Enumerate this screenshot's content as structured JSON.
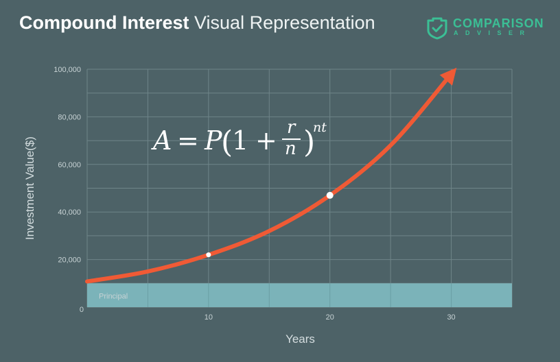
{
  "header": {
    "title_bold": "Compound Interest",
    "title_light": "Visual Representation"
  },
  "logo": {
    "name": "COMPARISON",
    "sub": "ADVISER",
    "icon": "shield-check-icon",
    "color": "#3bbf95"
  },
  "formula": {
    "lhs": "A",
    "eq": "=",
    "p": "P",
    "one": "1",
    "plus": "+",
    "r": "r",
    "n": "n",
    "exp": "nt"
  },
  "chart_data": {
    "type": "line",
    "title": "Compound Interest Visual Representation",
    "xlabel": "Years",
    "ylabel": "Investment Value($)",
    "xlim": [
      0,
      35
    ],
    "ylim": [
      0,
      100000
    ],
    "x_ticks": [
      10,
      20,
      30
    ],
    "x_tick_labels": [
      "10",
      "20",
      "30"
    ],
    "y_ticks": [
      0,
      20000,
      40000,
      60000,
      80000,
      100000
    ],
    "y_tick_labels": [
      "0",
      "20,000",
      "40,000",
      "60,000",
      "80,000",
      "100,000"
    ],
    "grid": true,
    "principal": {
      "label": "Principal",
      "value": 10000
    },
    "curve": {
      "x": [
        0,
        5,
        10,
        15,
        20,
        25,
        30
      ],
      "y": [
        10800,
        15000,
        22000,
        32000,
        47000,
        68000,
        98000
      ],
      "color": "#f05a35"
    },
    "markers": [
      {
        "x": 10,
        "y": 22000
      },
      {
        "x": 20,
        "y": 47000
      }
    ],
    "colors": {
      "background": "#4d6267",
      "grid": "#6f8589",
      "principal_band": "#7bb3b9"
    }
  }
}
